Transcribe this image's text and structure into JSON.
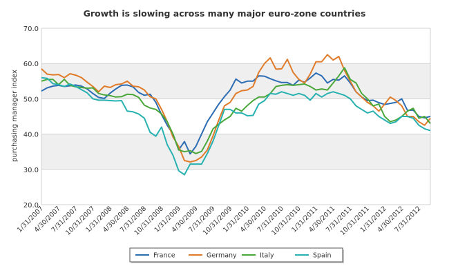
{
  "chart_data": {
    "type": "line",
    "title": "Growth is slowing across many major euro-zone countries",
    "ylabel": "purchasing manager index",
    "xlabel": "",
    "ylim": [
      20,
      70
    ],
    "yticks": [
      "20.0",
      "30.0",
      "40.0",
      "50.0",
      "60.0",
      "70.0"
    ],
    "grid": "horizontal bands",
    "legend_position": "bottom",
    "colors": {
      "France": "#2b6cb3",
      "Germany": "#e07b2a",
      "Italy": "#4aa83a",
      "Spain": "#27b1b0",
      "band": "#efefef",
      "gridline": "#d0d0d0"
    },
    "x_tick_labels": [
      "1/31/2007",
      "4/30/2007",
      "7/31/2007",
      "10/31/2007",
      "1/31/2008",
      "4/30/2008",
      "7/31/2008",
      "10/31/2008",
      "1/31/2009",
      "4/30/2009",
      "7/31/2009",
      "10/31/2009",
      "1/31/2010",
      "4/30/2010",
      "7/31/2010",
      "10/31/2010",
      "1/31/2011",
      "4/30/2011",
      "7/31/2011",
      "10/31/2011",
      "1/31/2012",
      "4/30/2012",
      "7/31/2012"
    ],
    "x": [
      "2007-01",
      "2007-02",
      "2007-03",
      "2007-04",
      "2007-05",
      "2007-06",
      "2007-07",
      "2007-08",
      "2007-09",
      "2007-10",
      "2007-11",
      "2007-12",
      "2008-01",
      "2008-02",
      "2008-03",
      "2008-04",
      "2008-05",
      "2008-06",
      "2008-07",
      "2008-08",
      "2008-09",
      "2008-10",
      "2008-11",
      "2008-12",
      "2009-01",
      "2009-02",
      "2009-03",
      "2009-04",
      "2009-05",
      "2009-06",
      "2009-07",
      "2009-08",
      "2009-09",
      "2009-10",
      "2009-11",
      "2009-12",
      "2010-01",
      "2010-02",
      "2010-03",
      "2010-04",
      "2010-05",
      "2010-06",
      "2010-07",
      "2010-08",
      "2010-09",
      "2010-10",
      "2010-11",
      "2010-12",
      "2011-01",
      "2011-02",
      "2011-03",
      "2011-04",
      "2011-05",
      "2011-06",
      "2011-07",
      "2011-08",
      "2011-09",
      "2011-10",
      "2011-11",
      "2011-12",
      "2012-01",
      "2012-02",
      "2012-03",
      "2012-04",
      "2012-05",
      "2012-06",
      "2012-07",
      "2012-08",
      "2012-09"
    ],
    "series": [
      {
        "name": "France",
        "values": [
          52.2,
          53.1,
          53.6,
          53.8,
          53.5,
          53.7,
          53.9,
          53.6,
          52.8,
          51.5,
          50.4,
          50.1,
          51.6,
          52.8,
          53.8,
          53.9,
          53.4,
          51.8,
          51.0,
          51.3,
          49.0,
          45.5,
          42.5,
          40.0,
          35.5,
          37.9,
          34.4,
          36.5,
          40.0,
          43.5,
          46.0,
          48.5,
          50.6,
          52.5,
          55.6,
          54.5,
          55.0,
          55.0,
          56.5,
          56.4,
          55.7,
          55.1,
          54.6,
          54.6,
          53.8,
          55.3,
          54.7,
          55.9,
          57.3,
          56.5,
          54.5,
          55.5,
          55.3,
          56.5,
          54.5,
          52.0,
          50.5,
          49.5,
          49.6,
          48.9,
          48.4,
          48.7,
          49.0,
          50.0,
          46.7,
          46.8,
          45.0,
          44.6,
          45.0
        ]
      },
      {
        "name": "Germany",
        "values": [
          58.5,
          57.0,
          56.8,
          56.9,
          56.0,
          57.1,
          56.7,
          56.0,
          54.7,
          53.5,
          52.0,
          53.6,
          53.2,
          54.0,
          54.2,
          55.0,
          53.6,
          53.4,
          52.5,
          50.6,
          50.0,
          47.0,
          43.5,
          39.2,
          36.5,
          32.5,
          32.1,
          32.5,
          33.5,
          35.5,
          39.5,
          44.0,
          48.0,
          49.0,
          51.5,
          52.3,
          52.5,
          53.5,
          57.5,
          60.0,
          61.6,
          58.4,
          58.5,
          61.2,
          57.5,
          55.5,
          54.5,
          57.0,
          60.5,
          60.5,
          62.5,
          61.0,
          62.0,
          58.0,
          55.0,
          52.0,
          50.5,
          49.0,
          48.0,
          46.5,
          48.5,
          50.5,
          49.5,
          48.0,
          45.0,
          45.0,
          43.5,
          42.5,
          44.5
        ]
      },
      {
        "name": "Italy",
        "values": [
          55.0,
          55.5,
          55.5,
          54.0,
          55.5,
          53.8,
          53.4,
          53.2,
          53.0,
          53.1,
          51.5,
          51.1,
          50.9,
          50.5,
          50.6,
          51.3,
          51.2,
          50.4,
          48.2,
          47.4,
          47.0,
          45.7,
          43.5,
          40.0,
          35.5,
          35.0,
          35.3,
          34.5,
          35.1,
          38.0,
          41.5,
          42.8,
          44.0,
          45.0,
          47.3,
          46.5,
          48.1,
          49.5,
          50.5,
          50.5,
          51.5,
          53.5,
          53.8,
          54.0,
          53.8,
          54.0,
          54.2,
          53.5,
          52.5,
          52.8,
          52.5,
          54.5,
          56.5,
          58.8,
          55.5,
          54.5,
          51.5,
          50.0,
          48.0,
          48.5,
          45.0,
          43.5,
          44.0,
          45.0,
          46.5,
          47.3,
          44.5,
          45.0,
          43.0
        ]
      },
      {
        "name": "Spain",
        "values": [
          56.0,
          55.8,
          54.3,
          54.0,
          53.5,
          54.2,
          53.5,
          52.6,
          51.7,
          50.0,
          49.6,
          49.6,
          49.5,
          49.4,
          49.5,
          46.5,
          46.3,
          45.7,
          44.5,
          40.5,
          39.4,
          42.0,
          37.0,
          34.0,
          29.6,
          28.5,
          31.5,
          31.5,
          31.5,
          34.5,
          38.0,
          42.5,
          47.0,
          47.0,
          46.0,
          46.0,
          45.2,
          45.3,
          48.5,
          49.5,
          51.5,
          51.3,
          52.0,
          51.5,
          51.0,
          51.5,
          51.0,
          49.6,
          51.5,
          50.5,
          51.5,
          52.0,
          51.5,
          51.0,
          50.0,
          48.0,
          47.0,
          46.0,
          46.5,
          45.0,
          44.0,
          43.0,
          43.5,
          45.0,
          45.0,
          44.5,
          42.5,
          41.5,
          41.0
        ]
      }
    ]
  }
}
